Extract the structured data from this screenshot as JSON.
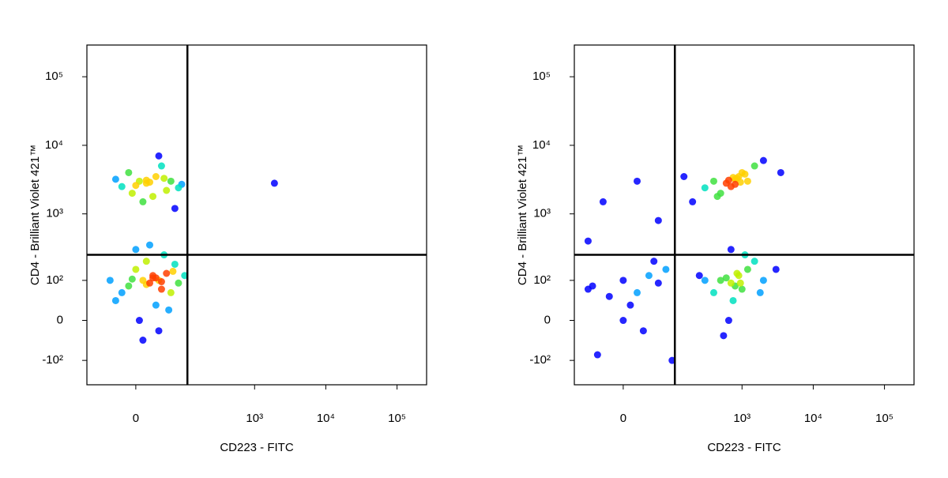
{
  "chart_data": [
    {
      "type": "scatter",
      "x_label": "CD223 - FITC",
      "y_label": "CD4 - Brilliant Violet 421™",
      "scale": "biexponential",
      "xlim": [
        -100,
        260000
      ],
      "ylim": [
        -240,
        290000
      ],
      "xticks": [
        0,
        {
          "value": 1000,
          "label": "10³"
        },
        {
          "value": 10000,
          "label": "10⁴"
        },
        {
          "value": 100000,
          "label": "10⁵"
        }
      ],
      "yticks": [
        {
          "value": -100,
          "label": "-10²"
        },
        0,
        {
          "value": 100,
          "label": "10²"
        },
        {
          "value": 1000,
          "label": "10³"
        },
        {
          "value": 10000,
          "label": "10⁴"
        },
        {
          "value": 100000,
          "label": "10⁵"
        }
      ],
      "gate": {
        "x": 110,
        "y": 250
      },
      "colormap": [
        "#0000ff",
        "#00a0ff",
        "#00e0c0",
        "#40e040",
        "#c0f000",
        "#ffd000",
        "#ff4000"
      ],
      "x": [
        -20,
        5,
        15,
        30,
        50,
        -10,
        25,
        60,
        0,
        40,
        80,
        10,
        -30,
        35,
        20,
        70,
        -5,
        45,
        90,
        15,
        10,
        20,
        30,
        -10,
        40,
        0,
        25,
        60,
        15,
        35,
        -30,
        50,
        5,
        45,
        80,
        20,
        -20,
        70,
        10,
        30,
        100,
        -40,
        55,
        25,
        0,
        40,
        15,
        65,
        35,
        -5,
        1900
      ],
      "y": [
        2500,
        3000,
        2800,
        3500,
        2200,
        4000,
        1800,
        3000,
        2600,
        5000,
        2400,
        1500,
        3200,
        7000,
        2900,
        1200,
        2000,
        3300,
        2700,
        3100,
        100,
        90,
        110,
        80,
        70,
        150,
        120,
        60,
        200,
        100,
        40,
        130,
        0,
        250,
        90,
        350,
        60,
        180,
        -40,
        30,
        120,
        100,
        20,
        110,
        300,
        95,
        85,
        140,
        -20,
        105,
        2800
      ]
    },
    {
      "type": "scatter",
      "x_label": "CD223 - FITC",
      "y_label": "CD4 - Brilliant Violet 421™",
      "scale": "biexponential",
      "xlim": [
        -100,
        260000
      ],
      "ylim": [
        -240,
        290000
      ],
      "xticks": [
        0,
        {
          "value": 1000,
          "label": "10³"
        },
        {
          "value": 10000,
          "label": "10⁴"
        },
        {
          "value": 100000,
          "label": "10⁵"
        }
      ],
      "yticks": [
        {
          "value": -100,
          "label": "-10²"
        },
        0,
        {
          "value": 100,
          "label": "10²"
        },
        {
          "value": 1000,
          "label": "10³"
        },
        {
          "value": 10000,
          "label": "10⁴"
        },
        {
          "value": 100000,
          "label": "10⁵"
        }
      ],
      "gate": {
        "x": 110,
        "y": 250
      },
      "colormap": [
        "#0000ff",
        "#00a0ff",
        "#00e0c0",
        "#40e040",
        "#c0f000",
        "#ffd000",
        "#ff4000"
      ],
      "x": [
        400,
        600,
        800,
        1000,
        700,
        900,
        1200,
        500,
        300,
        1500,
        800,
        650,
        1100,
        2000,
        850,
        450,
        950,
        750,
        500,
        700,
        900,
        800,
        1200,
        400,
        600,
        1000,
        1500,
        300,
        850,
        750,
        2000,
        650,
        1100,
        250,
        950,
        550,
        1800,
        700,
        -50,
        0,
        20,
        40,
        -20,
        60,
        10,
        80,
        30,
        -60,
        50,
        0,
        -30,
        20,
        60,
        150,
        -60,
        100,
        3000,
        3500,
        200,
        -40
      ],
      "y": [
        3000,
        2800,
        3200,
        4000,
        2500,
        3500,
        3000,
        2000,
        2400,
        5000,
        2700,
        3100,
        3800,
        6000,
        3300,
        1800,
        2900,
        3400,
        100,
        90,
        120,
        80,
        150,
        60,
        110,
        70,
        200,
        100,
        130,
        40,
        100,
        0,
        250,
        120,
        90,
        -30,
        60,
        300,
        80,
        100,
        60,
        120,
        50,
        90,
        30,
        150,
        -20,
        70,
        200,
        0,
        1500,
        3000,
        800,
        3500,
        400,
        -100,
        150,
        4000,
        1500,
        -80
      ]
    }
  ]
}
